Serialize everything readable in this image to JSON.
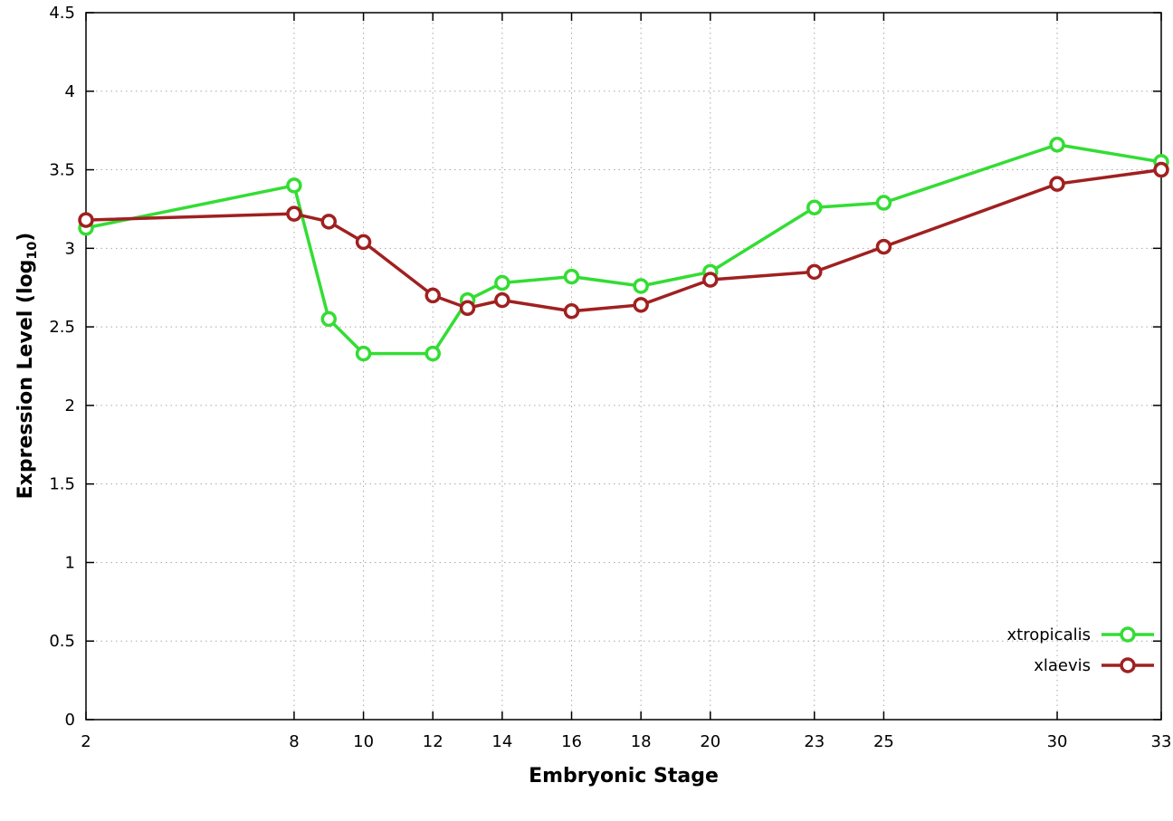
{
  "chart_data": {
    "type": "line",
    "title": "",
    "xlabel": "Embryonic Stage",
    "ylabel_main": "Expression Level (log",
    "ylabel_sub": "10",
    "ylabel_end": ")",
    "xlim": [
      2,
      33
    ],
    "ylim": [
      0,
      4.5
    ],
    "x_ticks": [
      2,
      8,
      10,
      12,
      14,
      16,
      18,
      20,
      23,
      25,
      30,
      33
    ],
    "y_ticks": [
      0,
      0.5,
      1,
      1.5,
      2,
      2.5,
      3,
      3.5,
      4,
      4.5
    ],
    "grid": true,
    "legend_position": "bottom-right",
    "x": [
      2,
      8,
      9,
      10,
      12,
      13,
      14,
      16,
      18,
      20,
      23,
      25,
      30,
      33
    ],
    "series": [
      {
        "name": "xtropicalis",
        "color": "#33dd33",
        "values": [
          3.13,
          3.4,
          2.55,
          2.33,
          2.33,
          2.67,
          2.78,
          2.82,
          2.76,
          2.85,
          3.26,
          3.29,
          3.66,
          3.55
        ]
      },
      {
        "name": "xlaevis",
        "color": "#a02020",
        "values": [
          3.18,
          3.22,
          3.17,
          3.04,
          2.7,
          2.62,
          2.67,
          2.6,
          2.64,
          2.8,
          2.85,
          3.01,
          3.41,
          3.5
        ]
      }
    ]
  }
}
